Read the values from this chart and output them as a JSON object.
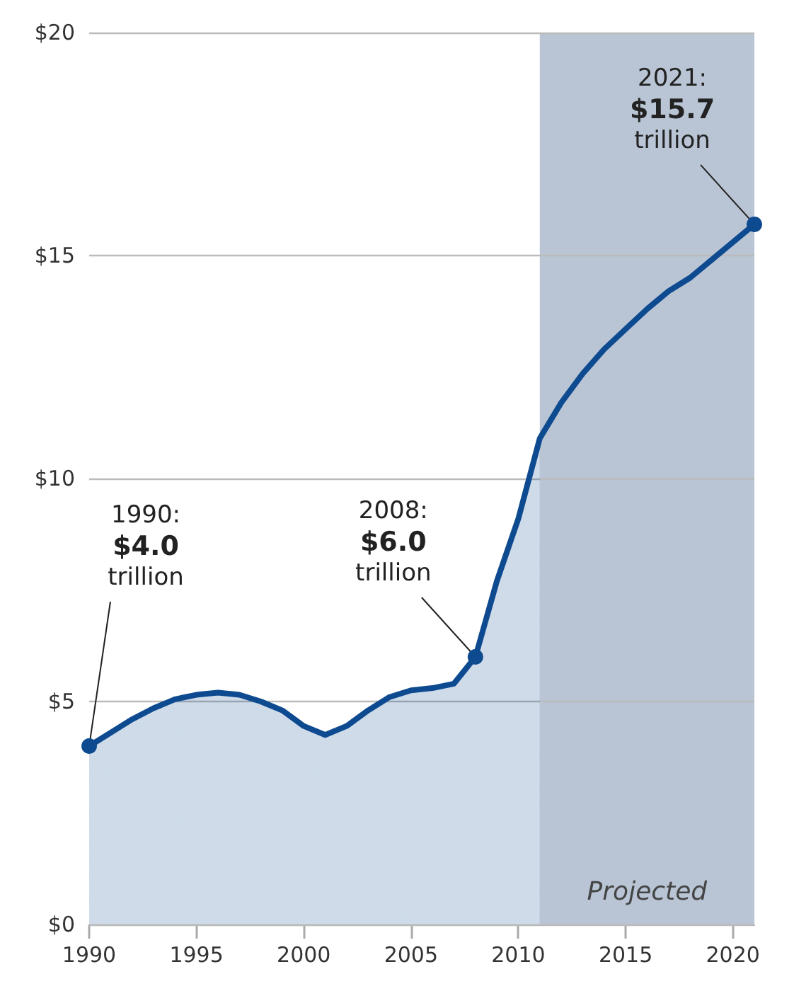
{
  "chart_data": {
    "type": "area",
    "x": [
      1990,
      1991,
      1992,
      1993,
      1994,
      1995,
      1996,
      1997,
      1998,
      1999,
      2000,
      2001,
      2002,
      2003,
      2004,
      2005,
      2006,
      2007,
      2008,
      2009,
      2010,
      2011,
      2012,
      2013,
      2014,
      2015,
      2016,
      2017,
      2018,
      2019,
      2020,
      2021
    ],
    "series": [
      {
        "color": "#0d4a8f",
        "values": [
          4.0,
          4.3,
          4.6,
          4.85,
          5.05,
          5.15,
          5.2,
          5.15,
          5.0,
          4.8,
          4.45,
          4.25,
          4.45,
          4.8,
          5.1,
          5.25,
          5.3,
          5.4,
          6.0,
          7.7,
          9.1,
          10.9,
          11.7,
          12.35,
          12.9,
          13.35,
          13.8,
          14.2,
          14.5,
          14.9,
          15.3,
          15.7
        ]
      }
    ],
    "xlim": [
      1990,
      2021
    ],
    "xticks": [
      1990,
      1995,
      2000,
      2005,
      2010,
      2015,
      2020
    ],
    "ylim": [
      0,
      20
    ],
    "yticks": [
      {
        "value": 0,
        "label": "$0"
      },
      {
        "value": 5,
        "label": "$5"
      },
      {
        "value": 10,
        "label": "$10"
      },
      {
        "value": 15,
        "label": "$15"
      },
      {
        "value": 20,
        "label": "$20"
      }
    ],
    "grid": "y",
    "bands": [
      {
        "axis": "x",
        "from": 2011,
        "to": 2021,
        "label": "Projected",
        "color": "#b9c5d5"
      }
    ],
    "annotations": [
      {
        "text": "1990:\n$4.0\ntrillion",
        "x": 1990,
        "y": 4.0
      },
      {
        "text": "2008:\n$6.0\ntrillion",
        "x": 2008,
        "y": 6.0
      },
      {
        "text": "2021:\n$15.7\ntrillion",
        "x": 2021,
        "y": 15.7
      }
    ]
  }
}
